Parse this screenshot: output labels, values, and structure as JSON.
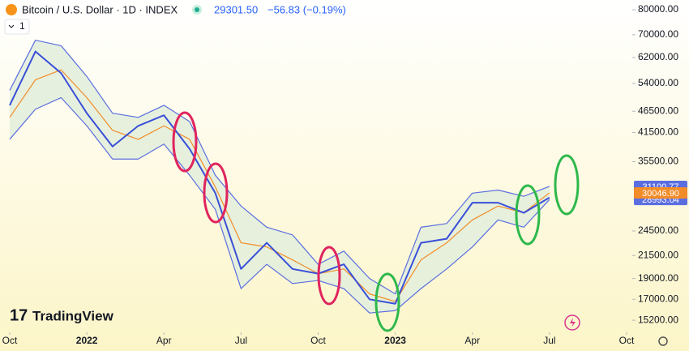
{
  "chart_data": {
    "type": "line",
    "symbol": "Bitcoin / U.S. Dollar · 1D · INDEX",
    "last": "29301.50",
    "change": "−56.83 (−0.19%)",
    "interval_button": "1",
    "brand": "TradingView",
    "log_scale": true,
    "x": [
      "2021-10",
      "2021-11",
      "2021-12",
      "2022-01",
      "2022-02",
      "2022-03",
      "2022-04",
      "2022-05",
      "2022-06",
      "2022-07",
      "2022-08",
      "2022-09",
      "2022-10",
      "2022-11",
      "2022-12",
      "2023-01",
      "2023-02",
      "2023-03",
      "2023-04",
      "2023-05",
      "2023-06",
      "2023-07"
    ],
    "xlim": [
      "2021-10",
      "2023-10"
    ],
    "xticks": [
      {
        "value": "2021-10",
        "label": "Oct"
      },
      {
        "value": "2022-01",
        "label": "2022"
      },
      {
        "value": "2022-04",
        "label": "Apr"
      },
      {
        "value": "2022-07",
        "label": "Jul"
      },
      {
        "value": "2022-10",
        "label": "Oct"
      },
      {
        "value": "2023-01",
        "label": "2023"
      },
      {
        "value": "2023-04",
        "label": "Apr"
      },
      {
        "value": "2023-07",
        "label": "Jul"
      },
      {
        "value": "2023-10",
        "label": "Oct"
      }
    ],
    "ylim": [
      14250,
      84300
    ],
    "yticks": [
      {
        "value": 80000,
        "label": "80000.00"
      },
      {
        "value": 70000,
        "label": "70000.00"
      },
      {
        "value": 62000,
        "label": "62000.00"
      },
      {
        "value": 54000,
        "label": "54000.00"
      },
      {
        "value": 46500,
        "label": "46500.00"
      },
      {
        "value": 41500,
        "label": "41500.00"
      },
      {
        "value": 35500,
        "label": "35500.00"
      },
      {
        "value": 24500,
        "label": "24500.00"
      },
      {
        "value": 21500,
        "label": "21500.00"
      },
      {
        "value": 19000,
        "label": "19000.00"
      },
      {
        "value": 17000,
        "label": "17000.00"
      },
      {
        "value": 15200,
        "label": "15200.00"
      }
    ],
    "band_fill": "#e3eedb",
    "series": [
      {
        "color": "#5b6ee0",
        "last_label": "31100.77",
        "values": [
          52000,
          68000,
          66000,
          56000,
          46000,
          45000,
          48000,
          44000,
          33000,
          28000,
          25000,
          24000,
          20500,
          22000,
          19000,
          17500,
          25000,
          25500,
          30000,
          30500,
          29500,
          31100.77
        ]
      },
      {
        "color": "#5b6ee0",
        "last_label": "28993.04",
        "values": [
          40000,
          47000,
          50000,
          43000,
          36000,
          36000,
          39000,
          33000,
          27500,
          18000,
          20500,
          18500,
          18800,
          18000,
          15800,
          16000,
          18000,
          20000,
          22500,
          26000,
          25000,
          28993.04
        ]
      },
      {
        "color": "#f28c28",
        "last_label": "30046.90",
        "values": [
          45000,
          55000,
          58000,
          50000,
          42000,
          40000,
          43000,
          40000,
          31000,
          23000,
          22500,
          21000,
          19500,
          20000,
          17500,
          16800,
          21000,
          23000,
          26000,
          28000,
          27000,
          30046.9
        ]
      },
      {
        "color": "#3a4fd8",
        "values": [
          48000,
          64000,
          57000,
          46000,
          38500,
          43000,
          45500,
          38000,
          30000,
          20000,
          23000,
          20000,
          19500,
          20500,
          17000,
          16600,
          23000,
          23500,
          28500,
          28500,
          27000,
          29301.5
        ]
      }
    ]
  }
}
